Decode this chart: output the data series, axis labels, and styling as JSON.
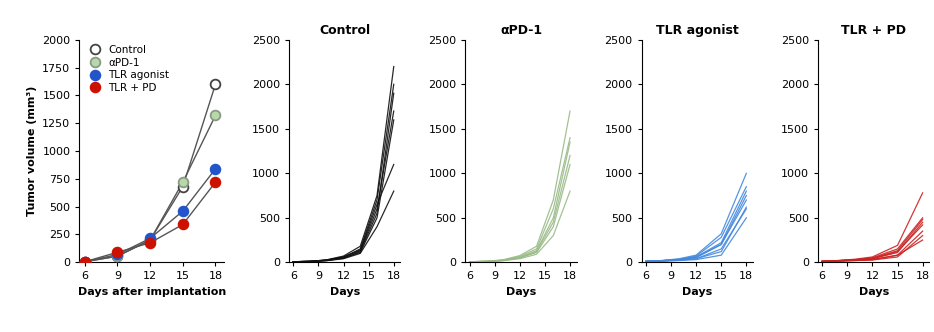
{
  "summary_groups": [
    {
      "label": "Control",
      "marker_facecolor": "white",
      "marker_edgecolor": "#444444",
      "days": [
        6,
        9,
        12,
        15,
        18
      ],
      "means": [
        5,
        55,
        200,
        680,
        1600
      ]
    },
    {
      "label": "αPD-1",
      "marker_facecolor": "#b8d8a8",
      "marker_edgecolor": "#889988",
      "days": [
        6,
        9,
        12,
        15,
        18
      ],
      "means": [
        5,
        55,
        200,
        720,
        1320
      ]
    },
    {
      "label": "TLR agonist",
      "marker_facecolor": "#2255cc",
      "marker_edgecolor": "#2255cc",
      "days": [
        6,
        9,
        12,
        15,
        18
      ],
      "means": [
        5,
        70,
        215,
        460,
        840
      ]
    },
    {
      "label": "TLR + PD",
      "marker_facecolor": "#cc1100",
      "marker_edgecolor": "#cc1100",
      "days": [
        6,
        9,
        12,
        15,
        18
      ],
      "means": [
        5,
        90,
        175,
        340,
        720
      ]
    }
  ],
  "individual_data": {
    "Control": {
      "color": "#111111",
      "mice": [
        [
          6,
          10,
          20,
          50,
          110,
          500,
          1600
        ],
        [
          6,
          10,
          25,
          60,
          130,
          600,
          1700
        ],
        [
          6,
          10,
          22,
          55,
          150,
          700,
          2000
        ],
        [
          6,
          10,
          28,
          70,
          180,
          750,
          2200
        ],
        [
          6,
          10,
          20,
          45,
          120,
          550,
          1900
        ],
        [
          6,
          10,
          18,
          40,
          100,
          400,
          800
        ],
        [
          6,
          10,
          25,
          60,
          140,
          650,
          1100
        ]
      ],
      "days": [
        6,
        8,
        10,
        12,
        14,
        16,
        18
      ]
    },
    "aPD1": {
      "color": "#99bb88",
      "mice": [
        [
          6,
          10,
          18,
          40,
          90,
          300,
          800
        ],
        [
          6,
          10,
          20,
          50,
          110,
          400,
          1100
        ],
        [
          6,
          10,
          22,
          55,
          130,
          500,
          1350
        ],
        [
          6,
          10,
          25,
          65,
          150,
          600,
          1400
        ],
        [
          6,
          10,
          28,
          75,
          180,
          700,
          1700
        ],
        [
          6,
          10,
          20,
          50,
          120,
          450,
          1200
        ]
      ],
      "days": [
        6,
        8,
        10,
        12,
        14,
        16,
        18
      ]
    },
    "TLR": {
      "color": "#4488dd",
      "mice": [
        [
          6,
          8,
          10,
          12,
          15,
          18
        ],
        [
          6,
          8,
          10,
          12,
          15,
          18
        ],
        [
          6,
          8,
          10,
          12,
          15,
          18
        ],
        [
          6,
          8,
          10,
          12,
          15,
          18
        ],
        [
          6,
          8,
          10,
          12,
          15,
          18
        ],
        [
          6,
          8,
          10,
          12,
          15,
          18
        ],
        [
          6,
          8,
          10,
          12,
          15,
          18
        ],
        [
          6,
          8,
          10,
          12,
          15,
          18
        ]
      ],
      "mice_values": [
        [
          10,
          15,
          20,
          30,
          80,
          500
        ],
        [
          10,
          15,
          25,
          40,
          120,
          620
        ],
        [
          10,
          18,
          30,
          55,
          200,
          750
        ],
        [
          10,
          20,
          35,
          70,
          280,
          850
        ],
        [
          10,
          18,
          30,
          60,
          220,
          800
        ],
        [
          10,
          20,
          40,
          80,
          320,
          1000
        ],
        [
          10,
          15,
          22,
          40,
          150,
          600
        ],
        [
          10,
          18,
          28,
          55,
          200,
          700
        ]
      ],
      "days": [
        6,
        8,
        10,
        12,
        15,
        18
      ]
    },
    "TLR_PD": {
      "color": "#cc2222",
      "mice": [
        [
          6,
          8,
          10,
          12,
          15,
          18
        ],
        [
          6,
          8,
          10,
          12,
          15,
          18
        ],
        [
          6,
          8,
          10,
          12,
          15,
          18
        ],
        [
          6,
          8,
          10,
          12,
          15,
          18
        ],
        [
          6,
          8,
          10,
          12,
          15,
          18
        ],
        [
          6,
          8,
          10,
          12,
          15,
          18
        ],
        [
          6,
          8,
          10,
          12,
          15,
          18
        ],
        [
          6,
          8,
          10,
          12,
          15,
          18
        ]
      ],
      "mice_values": [
        [
          10,
          15,
          20,
          25,
          60,
          300
        ],
        [
          10,
          15,
          22,
          30,
          80,
          350
        ],
        [
          10,
          18,
          25,
          40,
          110,
          450
        ],
        [
          10,
          20,
          30,
          50,
          150,
          500
        ],
        [
          10,
          18,
          28,
          45,
          130,
          480
        ],
        [
          10,
          20,
          35,
          60,
          190,
          780
        ],
        [
          10,
          15,
          20,
          30,
          80,
          250
        ],
        [
          10,
          18,
          25,
          40,
          120,
          420
        ]
      ],
      "days": [
        6,
        8,
        10,
        12,
        15,
        18
      ]
    }
  },
  "summary_line_color": "#555555",
  "ylim_summary": [
    0,
    2000
  ],
  "ylim_individual": [
    0,
    2500
  ],
  "yticks_individual": [
    0,
    500,
    1000,
    1500,
    2000,
    2500
  ],
  "xticks": [
    6,
    9,
    12,
    15,
    18
  ],
  "panel_titles": [
    "Control",
    "αPD-1",
    "TLR agonist",
    "TLR + PD"
  ],
  "xlabel_summary": "Days after implantation",
  "xlabel_individual": "Days",
  "ylabel_summary": "Tumor volume (mm³)",
  "legend_labels": [
    "Control",
    "αPD-1",
    "TLR agonist",
    "TLR + PD"
  ],
  "legend_colors_face": [
    "white",
    "#b8d8a8",
    "#2255cc",
    "#cc1100"
  ],
  "legend_colors_edge": [
    "#444444",
    "#889988",
    "#2255cc",
    "#cc1100"
  ]
}
